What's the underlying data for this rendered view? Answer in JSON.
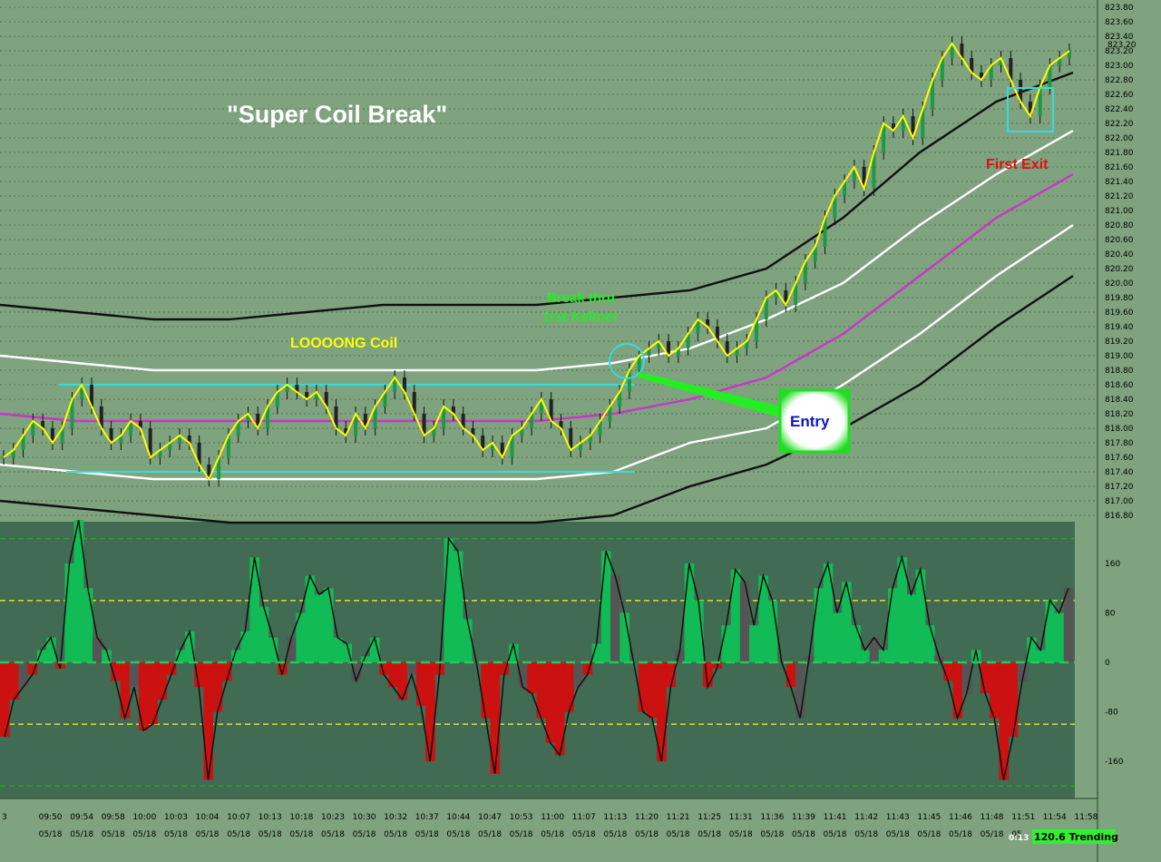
{
  "chart_data": [
    {
      "type": "line",
      "title": "\"Super Coil Break\"",
      "annotations": {
        "coil": "LOOOONG Coil",
        "break_line1": "Break thru",
        "break_line2": "1rst Keltner",
        "entry": "Entry",
        "exit": "First Exit"
      },
      "last_price": "823.20",
      "ylim": [
        816.8,
        823.8
      ],
      "y_ticks": [
        "823.80",
        "823.60",
        "823.40",
        "823.20",
        "823.00",
        "822.80",
        "822.60",
        "822.40",
        "822.20",
        "822.00",
        "821.80",
        "821.60",
        "821.40",
        "821.20",
        "821.00",
        "820.80",
        "820.60",
        "820.40",
        "820.20",
        "820.00",
        "819.80",
        "819.60",
        "819.40",
        "819.20",
        "819.00",
        "818.80",
        "818.60",
        "818.40",
        "818.20",
        "818.00",
        "817.80",
        "817.60",
        "817.40",
        "817.20",
        "817.00",
        "816.80"
      ],
      "price_series": [
        817.6,
        817.7,
        817.9,
        818.1,
        818.0,
        817.8,
        818.0,
        818.4,
        818.6,
        818.3,
        818.0,
        817.8,
        817.9,
        818.1,
        818.0,
        817.6,
        817.7,
        817.8,
        817.9,
        817.8,
        817.5,
        817.3,
        817.6,
        817.9,
        818.1,
        818.2,
        818.0,
        818.3,
        818.5,
        818.6,
        818.5,
        818.4,
        818.5,
        818.3,
        818.0,
        817.9,
        818.2,
        818.0,
        818.3,
        818.5,
        818.7,
        818.5,
        818.2,
        817.9,
        818.0,
        818.3,
        818.2,
        818.0,
        817.9,
        817.7,
        817.8,
        817.6,
        817.9,
        818.0,
        818.2,
        818.4,
        818.1,
        818.0,
        817.7,
        817.8,
        817.9,
        818.1,
        818.3,
        818.5,
        818.8,
        819.0,
        819.1,
        819.2,
        819.0,
        819.1,
        819.3,
        819.5,
        819.4,
        819.2,
        819.0,
        819.1,
        819.2,
        819.5,
        819.8,
        819.9,
        819.7,
        820.0,
        820.3,
        820.5,
        820.9,
        821.2,
        821.4,
        821.6,
        821.3,
        821.8,
        822.2,
        822.1,
        822.3,
        822.0,
        822.4,
        822.8,
        823.1,
        823.3,
        823.1,
        822.9,
        822.8,
        823.0,
        823.1,
        822.8,
        822.5,
        822.3,
        822.7,
        823.0,
        823.1,
        823.2
      ],
      "bands": [
        {
          "name": "outer-top",
          "values": [
            819.7,
            819.6,
            819.5,
            819.5,
            819.6,
            819.7,
            819.7,
            819.7,
            819.8,
            819.9,
            820.2,
            820.9,
            821.8,
            822.5,
            822.9
          ]
        },
        {
          "name": "inner-top",
          "values": [
            819.0,
            818.9,
            818.8,
            818.8,
            818.8,
            818.8,
            818.8,
            818.8,
            818.9,
            819.1,
            819.5,
            820.0,
            820.8,
            821.5,
            822.1
          ]
        },
        {
          "name": "midline",
          "values": [
            818.2,
            818.1,
            818.1,
            818.1,
            818.1,
            818.1,
            818.1,
            818.1,
            818.2,
            818.4,
            818.7,
            819.3,
            820.1,
            820.9,
            821.5
          ]
        },
        {
          "name": "inner-bottom",
          "values": [
            817.5,
            817.4,
            817.3,
            817.3,
            817.3,
            817.3,
            817.3,
            817.3,
            817.4,
            817.8,
            818.0,
            818.6,
            819.3,
            820.1,
            820.8
          ]
        },
        {
          "name": "outer-bottom",
          "values": [
            817.0,
            816.9,
            816.8,
            816.7,
            816.7,
            816.7,
            816.7,
            816.7,
            816.8,
            817.2,
            817.5,
            818.0,
            818.6,
            819.4,
            820.1
          ]
        }
      ],
      "coil_range": [
        817.4,
        818.6
      ]
    },
    {
      "type": "area",
      "ylim": [
        -220,
        220
      ],
      "y_ticks": [
        "160",
        "80",
        "0",
        "-80",
        "-160"
      ],
      "threshold_lines": [
        200,
        100,
        -100,
        -200
      ],
      "values": [
        -120,
        -60,
        -40,
        -20,
        20,
        40,
        -10,
        160,
        230,
        120,
        40,
        20,
        -30,
        -90,
        -40,
        -110,
        -100,
        -60,
        -20,
        20,
        50,
        -40,
        -190,
        -80,
        -30,
        20,
        50,
        170,
        90,
        40,
        -20,
        40,
        80,
        140,
        110,
        120,
        40,
        30,
        -30,
        10,
        40,
        -20,
        -40,
        -60,
        -20,
        -70,
        -160,
        -20,
        200,
        180,
        70,
        0,
        -90,
        -180,
        -20,
        30,
        -40,
        -50,
        -90,
        -130,
        -150,
        -80,
        -40,
        -20,
        30,
        180,
        140,
        80,
        0,
        -80,
        -90,
        -160,
        -40,
        20,
        160,
        100,
        -40,
        -10,
        60,
        150,
        130,
        60,
        140,
        100,
        0,
        -40,
        -90,
        10,
        120,
        160,
        80,
        130,
        60,
        20,
        40,
        20,
        120,
        170,
        110,
        150,
        60,
        10,
        -30,
        -90,
        -50,
        20,
        -50,
        -90,
        -190,
        -120,
        -30,
        40,
        20,
        100,
        80,
        120
      ]
    }
  ],
  "x_axis": {
    "times": [
      "3",
      "09:50",
      "09:54",
      "09:58",
      "10:00",
      "10:03",
      "10:04",
      "10:07",
      "10:13",
      "10:18",
      "10:23",
      "10:30",
      "10:32",
      "10:37",
      "10:44",
      "10:47",
      "10:53",
      "11:00",
      "11:07",
      "11:13",
      "11:20",
      "11:21",
      "11:25",
      "11:31",
      "11:36",
      "11:39",
      "11:41",
      "11:42",
      "11:43",
      "11:45",
      "11:46",
      "11:48",
      "11:51",
      "11:54",
      "11:58"
    ],
    "dates": [
      "",
      "05/18",
      "05/18",
      "05/18",
      "05/18",
      "05/18",
      "05/18",
      "05/18",
      "05/18",
      "05/18",
      "05/18",
      "05/18",
      "05/18",
      "05/18",
      "05/18",
      "05/18",
      "05/18",
      "05/18",
      "05/18",
      "05/18",
      "05/18",
      "05/18",
      "05/18",
      "05/18",
      "05/18",
      "05/18",
      "05/18",
      "05/18",
      "05/18",
      "05/18",
      "05/18",
      "05/18",
      "05",
      "05/18",
      "05/18"
    ]
  },
  "status": {
    "timer": "0:13",
    "mode": "120.6 Trending"
  },
  "colors": {
    "upper_bg": "#7fa37f",
    "lower_bg": "#416b52",
    "price_line": "#ffff00",
    "midline": "#cc33cc",
    "bands_white": "#ffffff",
    "bands_black": "#111111",
    "coil": "#33dddd",
    "osc_pos": "#11bb55",
    "osc_neg": "#cc1111",
    "entry_arrow": "#22ee22"
  }
}
